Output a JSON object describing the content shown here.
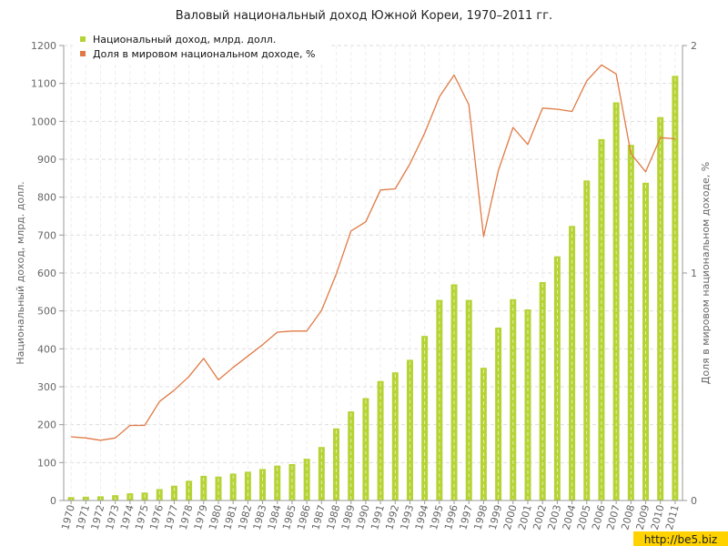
{
  "chart_data": {
    "type": "bar",
    "title": "Валовый национальный доход Южной Кореи, 1970–2011 гг.",
    "ylabel": "Национальный доход, млрд. долл.",
    "ylabel_right": "Доля в мировом национальном доходе, %",
    "ylim": [
      0,
      1200
    ],
    "ylim_right": [
      0,
      2
    ],
    "yticks": [
      "0",
      "100",
      "200",
      "300",
      "400",
      "500",
      "600",
      "700",
      "800",
      "900",
      "1000",
      "1100",
      "1200"
    ],
    "yticks_right": [
      "0",
      "1",
      "2"
    ],
    "grid": true,
    "legend_position": "top-left",
    "categories": [
      "1970",
      "1971",
      "1972",
      "1973",
      "1974",
      "1975",
      "1976",
      "1977",
      "1978",
      "1979",
      "1980",
      "1981",
      "1982",
      "1983",
      "1984",
      "1985",
      "1986",
      "1987",
      "1988",
      "1989",
      "1990",
      "1991",
      "1992",
      "1993",
      "1994",
      "1995",
      "1996",
      "1997",
      "1998",
      "1999",
      "2000",
      "2001",
      "2002",
      "2003",
      "2004",
      "2005",
      "2006",
      "2007",
      "2008",
      "2009",
      "2010",
      "2011"
    ],
    "series": [
      {
        "name": "Национальный доход, млрд. долл.",
        "type": "bar",
        "axis": "left",
        "color": "#b5d334",
        "values": [
          9,
          10,
          11,
          14,
          19,
          21,
          30,
          39,
          52,
          65,
          63,
          71,
          76,
          83,
          92,
          96,
          110,
          141,
          190,
          235,
          270,
          315,
          338,
          371,
          434,
          529,
          570,
          529,
          350,
          456,
          531,
          504,
          576,
          644,
          724,
          844,
          953,
          1050,
          938,
          838,
          1011,
          1120
        ]
      },
      {
        "name": "Доля в мировом национальном доходе, %",
        "type": "line",
        "axis": "right",
        "color": "#e07a45",
        "values": [
          0.28,
          0.275,
          0.265,
          0.275,
          0.33,
          0.33,
          0.435,
          0.485,
          0.545,
          0.625,
          0.53,
          0.585,
          0.635,
          0.685,
          0.74,
          0.745,
          0.745,
          0.835,
          0.995,
          1.185,
          1.225,
          1.365,
          1.37,
          1.48,
          1.615,
          1.775,
          1.87,
          1.74,
          1.16,
          1.45,
          1.64,
          1.565,
          1.725,
          1.72,
          1.71,
          1.845,
          1.915,
          1.875,
          1.525,
          1.445,
          1.595,
          1.59
        ]
      }
    ]
  },
  "watermark": "http://be5.biz"
}
